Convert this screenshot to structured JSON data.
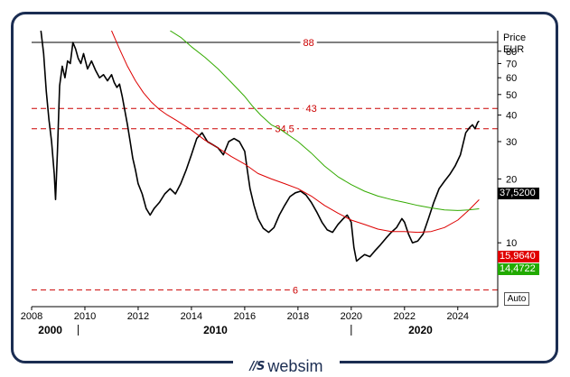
{
  "price_axis": {
    "title": "Price",
    "currency": "EUR"
  },
  "current_prices": [
    {
      "value": "37,5200",
      "bg": "#000000",
      "fg": "#ffffff"
    },
    {
      "value": "15,9640",
      "bg": "#e00000",
      "fg": "#ffffff"
    },
    {
      "value": "14,4722",
      "bg": "#22aa00",
      "fg": "#ffffff"
    }
  ],
  "auto_label": "Auto",
  "logo": {
    "mark": "//S",
    "text": "websim"
  },
  "chart_data": {
    "type": "line",
    "xlim": [
      2008,
      2025.5
    ],
    "ylim_log": [
      5,
      100
    ],
    "y_ticks": [
      10,
      20,
      30,
      40,
      50,
      60,
      70,
      80
    ],
    "x_ticks": [
      2008,
      2010,
      2012,
      2014,
      2016,
      2018,
      2020,
      2022,
      2024
    ],
    "x_labels": [
      "2008",
      "2010",
      "2012",
      "2014",
      "2016",
      "2018",
      "2020",
      "2022",
      "2024"
    ],
    "period_labels": [
      {
        "text": "2000",
        "x": 2008.7
      },
      {
        "text": "2010",
        "x": 2014.9
      },
      {
        "text": "2020",
        "x": 2022.6
      }
    ],
    "period_dividers": [
      2009.75,
      2020
    ],
    "hlines": [
      {
        "value": 88,
        "label": "88",
        "style": "solid",
        "color": "#000000",
        "label_x": 2018.4
      },
      {
        "value": 43,
        "label": "43",
        "style": "dashed",
        "color": "#cc0000",
        "label_x": 2018.5
      },
      {
        "value": 34.5,
        "label": "34,5",
        "style": "dashed",
        "color": "#cc0000",
        "label_x": 2017.5
      },
      {
        "value": 6,
        "label": "6",
        "style": "dashed",
        "color": "#cc0000",
        "label_x": 2017.9
      }
    ],
    "series": [
      {
        "color": "#000000",
        "points": [
          [
            2008.35,
            100
          ],
          [
            2008.45,
            78
          ],
          [
            2008.55,
            52
          ],
          [
            2008.65,
            38
          ],
          [
            2008.75,
            30
          ],
          [
            2008.85,
            21
          ],
          [
            2008.9,
            16
          ],
          [
            2008.97,
            27
          ],
          [
            2009.05,
            55
          ],
          [
            2009.15,
            68
          ],
          [
            2009.25,
            60
          ],
          [
            2009.35,
            72
          ],
          [
            2009.45,
            70
          ],
          [
            2009.55,
            88
          ],
          [
            2009.65,
            82
          ],
          [
            2009.75,
            74
          ],
          [
            2009.85,
            70
          ],
          [
            2009.95,
            78
          ],
          [
            2010.1,
            66
          ],
          [
            2010.25,
            72
          ],
          [
            2010.4,
            65
          ],
          [
            2010.55,
            60
          ],
          [
            2010.7,
            62
          ],
          [
            2010.85,
            58
          ],
          [
            2011.0,
            62
          ],
          [
            2011.1,
            57
          ],
          [
            2011.2,
            54
          ],
          [
            2011.3,
            56
          ],
          [
            2011.4,
            49
          ],
          [
            2011.5,
            42
          ],
          [
            2011.6,
            36
          ],
          [
            2011.7,
            30
          ],
          [
            2011.8,
            25
          ],
          [
            2011.9,
            22
          ],
          [
            2012.0,
            19
          ],
          [
            2012.15,
            17
          ],
          [
            2012.3,
            14.5
          ],
          [
            2012.45,
            13.5
          ],
          [
            2012.6,
            14.5
          ],
          [
            2012.8,
            15.5
          ],
          [
            2013.0,
            17
          ],
          [
            2013.2,
            18
          ],
          [
            2013.4,
            17
          ],
          [
            2013.6,
            19
          ],
          [
            2013.8,
            22
          ],
          [
            2014.0,
            26
          ],
          [
            2014.2,
            31
          ],
          [
            2014.4,
            33
          ],
          [
            2014.6,
            30
          ],
          [
            2014.8,
            29
          ],
          [
            2015.0,
            28
          ],
          [
            2015.2,
            26
          ],
          [
            2015.4,
            30
          ],
          [
            2015.6,
            31
          ],
          [
            2015.8,
            30
          ],
          [
            2016.0,
            27
          ],
          [
            2016.1,
            22
          ],
          [
            2016.2,
            18
          ],
          [
            2016.35,
            15
          ],
          [
            2016.5,
            13
          ],
          [
            2016.7,
            11.7
          ],
          [
            2016.9,
            11.2
          ],
          [
            2017.1,
            11.8
          ],
          [
            2017.3,
            13.5
          ],
          [
            2017.5,
            15
          ],
          [
            2017.7,
            16.5
          ],
          [
            2017.9,
            17.2
          ],
          [
            2018.1,
            17.5
          ],
          [
            2018.3,
            16.8
          ],
          [
            2018.5,
            15.5
          ],
          [
            2018.7,
            14
          ],
          [
            2018.9,
            12.5
          ],
          [
            2019.1,
            11.5
          ],
          [
            2019.3,
            11.2
          ],
          [
            2019.5,
            12.2
          ],
          [
            2019.7,
            13
          ],
          [
            2019.85,
            13.5
          ],
          [
            2020.0,
            12.5
          ],
          [
            2020.1,
            9.5
          ],
          [
            2020.2,
            8.2
          ],
          [
            2020.35,
            8.5
          ],
          [
            2020.5,
            8.8
          ],
          [
            2020.7,
            8.6
          ],
          [
            2020.9,
            9.2
          ],
          [
            2021.1,
            9.8
          ],
          [
            2021.3,
            10.5
          ],
          [
            2021.5,
            11.2
          ],
          [
            2021.7,
            11.8
          ],
          [
            2021.9,
            13
          ],
          [
            2022.0,
            12.5
          ],
          [
            2022.15,
            11
          ],
          [
            2022.3,
            10
          ],
          [
            2022.5,
            10.2
          ],
          [
            2022.7,
            11
          ],
          [
            2022.9,
            13
          ],
          [
            2023.1,
            15.5
          ],
          [
            2023.3,
            18
          ],
          [
            2023.5,
            19.5
          ],
          [
            2023.7,
            21
          ],
          [
            2023.9,
            23
          ],
          [
            2024.1,
            26
          ],
          [
            2024.3,
            33
          ],
          [
            2024.45,
            35
          ],
          [
            2024.55,
            36
          ],
          [
            2024.65,
            34.5
          ],
          [
            2024.75,
            37
          ],
          [
            2024.8,
            37.5
          ]
        ]
      },
      {
        "color": "#dd0000",
        "points": [
          [
            2011.0,
            100
          ],
          [
            2011.3,
            82
          ],
          [
            2011.6,
            68
          ],
          [
            2011.9,
            58
          ],
          [
            2012.2,
            51
          ],
          [
            2012.5,
            46
          ],
          [
            2012.8,
            42.5
          ],
          [
            2013.1,
            40
          ],
          [
            2013.4,
            38
          ],
          [
            2013.7,
            36
          ],
          [
            2014.0,
            34
          ],
          [
            2014.5,
            30.5
          ],
          [
            2015.0,
            28
          ],
          [
            2015.5,
            25.5
          ],
          [
            2016.0,
            23.5
          ],
          [
            2016.5,
            21.2
          ],
          [
            2017.0,
            20
          ],
          [
            2017.5,
            19
          ],
          [
            2018.0,
            18
          ],
          [
            2018.5,
            16.6
          ],
          [
            2019.0,
            15
          ],
          [
            2019.5,
            13.8
          ],
          [
            2020.0,
            12.8
          ],
          [
            2020.5,
            12.2
          ],
          [
            2021.0,
            11.6
          ],
          [
            2021.5,
            11.3
          ],
          [
            2022.0,
            11.3
          ],
          [
            2022.5,
            11.2
          ],
          [
            2023.0,
            11.3
          ],
          [
            2023.5,
            11.8
          ],
          [
            2024.0,
            12.8
          ],
          [
            2024.4,
            14.2
          ],
          [
            2024.8,
            15.96
          ]
        ]
      },
      {
        "color": "#33aa00",
        "points": [
          [
            2013.2,
            100
          ],
          [
            2013.6,
            93
          ],
          [
            2014.0,
            84
          ],
          [
            2014.5,
            75
          ],
          [
            2015.0,
            66
          ],
          [
            2015.5,
            57
          ],
          [
            2016.0,
            49
          ],
          [
            2016.3,
            44
          ],
          [
            2016.6,
            40
          ],
          [
            2017.0,
            36
          ],
          [
            2017.3,
            34.5
          ],
          [
            2017.6,
            32.5
          ],
          [
            2018.0,
            30
          ],
          [
            2018.5,
            26.5
          ],
          [
            2019.0,
            23
          ],
          [
            2019.5,
            20.5
          ],
          [
            2020.0,
            18.8
          ],
          [
            2020.5,
            17.5
          ],
          [
            2021.0,
            16.6
          ],
          [
            2021.5,
            16
          ],
          [
            2022.0,
            15.5
          ],
          [
            2022.5,
            15
          ],
          [
            2023.0,
            14.6
          ],
          [
            2023.5,
            14.3
          ],
          [
            2024.0,
            14.2
          ],
          [
            2024.4,
            14.3
          ],
          [
            2024.8,
            14.47
          ]
        ]
      }
    ]
  }
}
